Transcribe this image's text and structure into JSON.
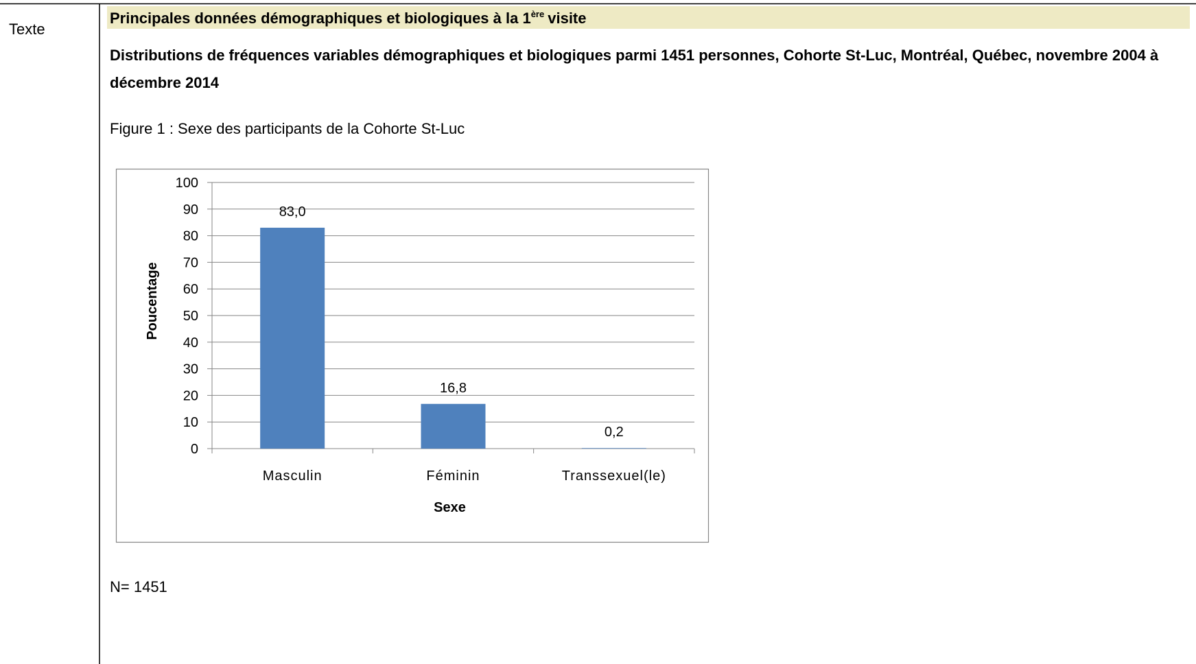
{
  "document": {
    "row_label": "Texte",
    "heading": {
      "text": "Principales données démographiques et biologiques à la 1",
      "superscript": "ère",
      "suffix": "visite"
    },
    "subtitle": "Distributions de fréquences variables démographiques et biologiques parmi 1451 personnes, Cohorte St-Luc, Montréal, Québec, novembre 2004 à décembre 2014",
    "figure_caption": "Figure 1 : Sexe des participants de la Cohorte St-Luc",
    "note": "N= 1451"
  },
  "chart_data": {
    "type": "bar",
    "categories": [
      "Masculin",
      "Féminin",
      "Transsexuel(le)"
    ],
    "values": [
      83.0,
      16.8,
      0.2
    ],
    "value_labels": [
      "83,0",
      "16,8",
      "0,2"
    ],
    "color": "#4f81bd",
    "xlabel": "Sexe",
    "ylabel": "Poucentage",
    "ylim": [
      0,
      100
    ],
    "yticks": [
      0,
      10,
      20,
      30,
      40,
      50,
      60,
      70,
      80,
      90,
      100
    ],
    "grid": true
  }
}
